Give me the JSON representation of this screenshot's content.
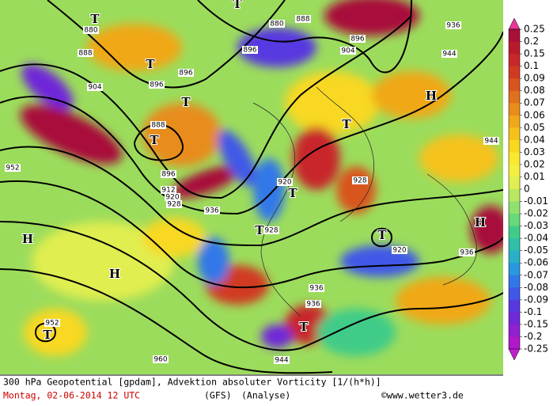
{
  "map": {
    "title": "300 hPa Geopotential [gpdam], Advektion absoluter Vorticity [1/(h*h)]",
    "date": "Montag, 02-06-2014  12 UTC",
    "model": "(GFS)",
    "run": "(Analyse)",
    "credit": "©www.wetter3.de",
    "contour_labels": [
      880,
      888,
      896,
      904,
      888,
      896,
      912,
      920,
      928,
      936,
      920,
      928,
      928,
      920,
      936,
      936,
      944,
      952,
      960,
      952,
      944,
      936,
      944,
      936,
      880,
      888,
      896,
      904,
      896,
      896
    ],
    "centers": [
      "T",
      "T",
      "T",
      "T",
      "T",
      "T",
      "T",
      "T",
      "T",
      "T",
      "H",
      "H",
      "H",
      "H",
      "T"
    ],
    "legend": {
      "labels": [
        0.25,
        0.2,
        0.15,
        0.1,
        0.09,
        0.08,
        0.07,
        0.06,
        0.05,
        0.04,
        0.03,
        0.02,
        0.01,
        0,
        -0.01,
        -0.02,
        -0.03,
        -0.04,
        -0.05,
        -0.06,
        -0.07,
        -0.08,
        -0.09,
        -0.1,
        -0.15,
        -0.2,
        -0.25
      ],
      "colors": [
        "#a8103a",
        "#b81a2c",
        "#c8282a",
        "#d03a22",
        "#d8541e",
        "#e0701c",
        "#e88c1a",
        "#f0a818",
        "#f5c21a",
        "#f8d820",
        "#fae830",
        "#f4f040",
        "#e0ee50",
        "#b8e860",
        "#90e070",
        "#68d878",
        "#40cc88",
        "#30c0a8",
        "#28b0c8",
        "#2898e0",
        "#3078e8",
        "#4058e8",
        "#5838e0",
        "#7028d8",
        "#9020d0",
        "#b018c8"
      ],
      "top_color": "#e83898",
      "bottom_color": "#c020d0"
    }
  }
}
